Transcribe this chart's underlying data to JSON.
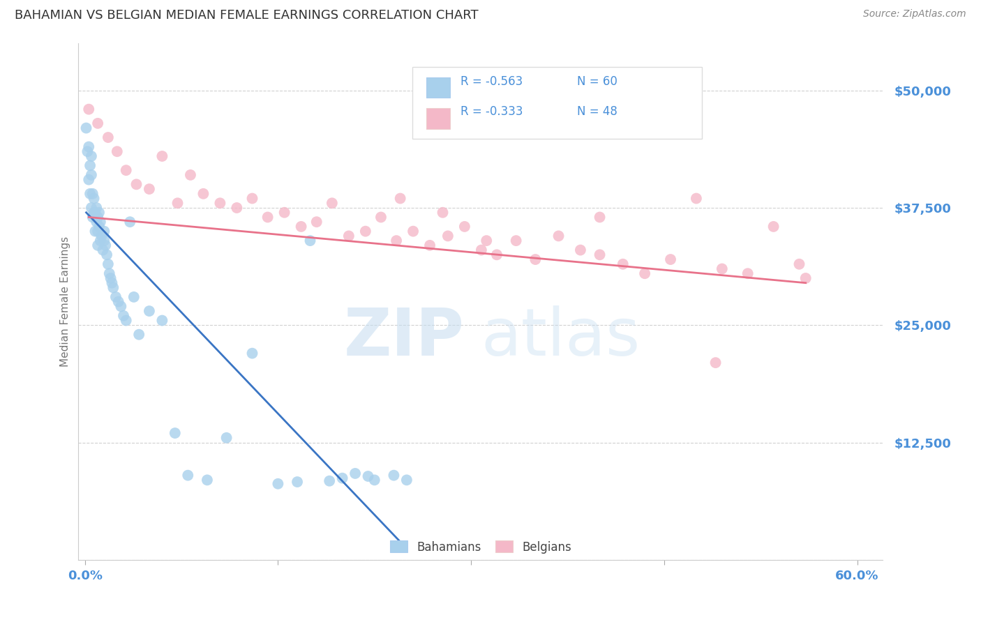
{
  "title": "BAHAMIAN VS BELGIAN MEDIAN FEMALE EARNINGS CORRELATION CHART",
  "source_text": "Source: ZipAtlas.com",
  "ylabel": "Median Female Earnings",
  "xlim": [
    -0.005,
    0.62
  ],
  "ylim": [
    0,
    55000
  ],
  "ytick_vals": [
    0,
    12500,
    25000,
    37500,
    50000
  ],
  "ytick_labels": [
    "",
    "$12,500",
    "$25,000",
    "$37,500",
    "$50,000"
  ],
  "xtick_vals": [
    0.0,
    0.15,
    0.3,
    0.45,
    0.6
  ],
  "xtick_labels": [
    "0.0%",
    "",
    "",
    "",
    "60.0%"
  ],
  "bahamian_color": "#A8D0EC",
  "belgian_color": "#F4B8C8",
  "bahamian_line_color": "#3A75C4",
  "belgian_line_color": "#E8728A",
  "legend_color": "#4A90D9",
  "bahamian_label": "Bahamians",
  "belgian_label": "Belgians",
  "watermark_zip_color": "#C5DCF0",
  "watermark_atlas_color": "#C5DCF0",
  "background_color": "#FFFFFF",
  "grid_color": "#CCCCCC",
  "title_color": "#333333",
  "axis_label_color": "#777777",
  "tick_label_color": "#4A90D9",
  "source_color": "#888888",
  "bahamian_x": [
    0.001,
    0.002,
    0.003,
    0.003,
    0.004,
    0.004,
    0.005,
    0.005,
    0.005,
    0.006,
    0.006,
    0.007,
    0.007,
    0.008,
    0.008,
    0.009,
    0.009,
    0.01,
    0.01,
    0.01,
    0.011,
    0.011,
    0.012,
    0.012,
    0.013,
    0.014,
    0.015,
    0.015,
    0.016,
    0.017,
    0.018,
    0.019,
    0.02,
    0.021,
    0.022,
    0.024,
    0.026,
    0.028,
    0.03,
    0.032,
    0.035,
    0.038,
    0.042,
    0.05,
    0.06,
    0.07,
    0.08,
    0.095,
    0.11,
    0.13,
    0.15,
    0.165,
    0.175,
    0.19,
    0.2,
    0.21,
    0.22,
    0.225,
    0.24,
    0.25
  ],
  "bahamian_y": [
    46000,
    43500,
    44000,
    40500,
    42000,
    39000,
    43000,
    41000,
    37500,
    39000,
    36500,
    38500,
    37000,
    37000,
    35000,
    37500,
    36000,
    36500,
    35000,
    33500,
    37000,
    35500,
    36000,
    34000,
    34500,
    33000,
    35000,
    34000,
    33500,
    32500,
    31500,
    30500,
    30000,
    29500,
    29000,
    28000,
    27500,
    27000,
    26000,
    25500,
    36000,
    28000,
    24000,
    26500,
    25500,
    13500,
    9000,
    8500,
    13000,
    22000,
    8100,
    8300,
    34000,
    8400,
    8700,
    9200,
    8900,
    8500,
    9000,
    8500
  ],
  "belgian_x": [
    0.003,
    0.01,
    0.018,
    0.025,
    0.032,
    0.04,
    0.05,
    0.06,
    0.072,
    0.082,
    0.092,
    0.105,
    0.118,
    0.13,
    0.142,
    0.155,
    0.168,
    0.18,
    0.192,
    0.205,
    0.218,
    0.23,
    0.242,
    0.255,
    0.268,
    0.282,
    0.295,
    0.308,
    0.32,
    0.335,
    0.35,
    0.368,
    0.385,
    0.4,
    0.418,
    0.435,
    0.455,
    0.475,
    0.495,
    0.515,
    0.535,
    0.555,
    0.49,
    0.4,
    0.312,
    0.278,
    0.245,
    0.56
  ],
  "belgian_y": [
    48000,
    46500,
    45000,
    43500,
    41500,
    40000,
    39500,
    43000,
    38000,
    41000,
    39000,
    38000,
    37500,
    38500,
    36500,
    37000,
    35500,
    36000,
    38000,
    34500,
    35000,
    36500,
    34000,
    35000,
    33500,
    34500,
    35500,
    33000,
    32500,
    34000,
    32000,
    34500,
    33000,
    32500,
    31500,
    30500,
    32000,
    38500,
    31000,
    30500,
    35500,
    31500,
    21000,
    36500,
    34000,
    37000,
    38500,
    30000
  ],
  "blue_line_x0": 0.001,
  "blue_line_y0": 37000,
  "blue_line_x1": 0.25,
  "blue_line_y1": 1200,
  "pink_line_x0": 0.003,
  "pink_line_y0": 36500,
  "pink_line_x1": 0.56,
  "pink_line_y1": 29500
}
